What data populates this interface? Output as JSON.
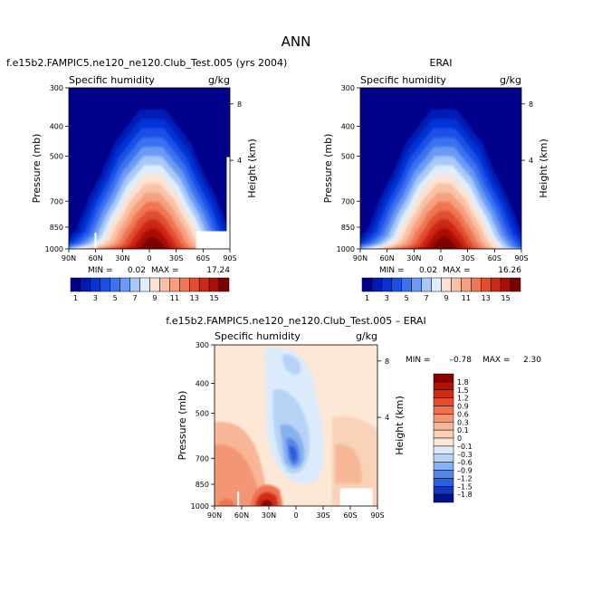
{
  "title": "ANN",
  "panels": [
    {
      "title": "f.e15b2.FAMPIC5.ne120_ne120.Club_Test.005 (yrs 2004)",
      "variable": "Specific humidity",
      "units": "g/kg",
      "ylabel": "Pressure (mb)",
      "ylabel_right": "Height (km)",
      "yticks": [
        "300",
        "400",
        "500",
        "700",
        "850",
        "1000"
      ],
      "height_ticks": [
        "8",
        "4"
      ],
      "xticks": [
        "90N",
        "60N",
        "30N",
        "0",
        "30S",
        "60S",
        "90S"
      ],
      "min_label": "MIN =",
      "min_value": "0.02",
      "max_label": "MAX =",
      "max_value": "17.24"
    },
    {
      "title": "ERAI",
      "variable": "Specific humidity",
      "units": "g/kg",
      "ylabel": "Pressure (mb)",
      "ylabel_right": "Height (km)",
      "yticks": [
        "300",
        "400",
        "500",
        "700",
        "850",
        "1000"
      ],
      "height_ticks": [
        "8",
        "4"
      ],
      "xticks": [
        "90N",
        "60N",
        "30N",
        "0",
        "30S",
        "60S",
        "90S"
      ],
      "min_label": "MIN =",
      "min_value": "0.02",
      "max_label": "MAX =",
      "max_value": "16.26"
    },
    {
      "title": "f.e15b2.FAMPIC5.ne120_ne120.Club_Test.005 – ERAI",
      "variable": "Specific humidity",
      "units": "g/kg",
      "ylabel": "Pressure (mb)",
      "ylabel_right": "Height (km)",
      "yticks": [
        "300",
        "400",
        "500",
        "700",
        "850",
        "1000"
      ],
      "height_ticks": [
        "8",
        "4"
      ],
      "xticks": [
        "90N",
        "60N",
        "30N",
        "0",
        "30S",
        "60S",
        "90S"
      ],
      "min_label": "MIN =",
      "min_value": "–0.78",
      "max_label": "MAX =",
      "max_value": "2.30"
    }
  ],
  "colorbar_q": {
    "labels": [
      "1",
      "3",
      "5",
      "7",
      "9",
      "11",
      "13",
      "15"
    ],
    "colors": [
      "#00008a",
      "#001bb5",
      "#0533d4",
      "#1a50e6",
      "#3a72f0",
      "#6a9af5",
      "#a8c8f8",
      "#dfeefc",
      "#fde2d2",
      "#f9c1a6",
      "#f59f7e",
      "#ef7653",
      "#e24d30",
      "#cc2815",
      "#aa0f05",
      "#7c0000"
    ]
  },
  "colorbar_diff": {
    "labels": [
      "1.8",
      "1.5",
      "1.2",
      "0.9",
      "0.6",
      "0.3",
      "0.1",
      "0",
      "–0.1",
      "–0.3",
      "–0.6",
      "–0.9",
      "–1.2",
      "–1.5",
      "–1.8"
    ],
    "colors": [
      "#8a0000",
      "#b31005",
      "#d02b12",
      "#e44e2c",
      "#ee7250",
      "#f39675",
      "#f7b797",
      "#fad2b8",
      "#fde8d6",
      "#dcebfb",
      "#b6d3f6",
      "#86b1ee",
      "#5687e6",
      "#2c5fd9",
      "#1336bd",
      "#00118f"
    ]
  },
  "chart_data": [
    {
      "type": "heatmap",
      "title": "f.e15b2.FAMPIC5.ne120_ne120.Club_Test.005 (yrs 2004)",
      "variable": "Specific humidity",
      "units": "g/kg",
      "x": [
        "90N",
        "60N",
        "30N",
        "0",
        "30S",
        "60S",
        "90S"
      ],
      "y": [
        300,
        400,
        500,
        700,
        850,
        1000
      ],
      "xlabel": "",
      "ylabel": "Pressure (mb)",
      "levels": [
        1,
        2,
        3,
        4,
        5,
        6,
        7,
        8,
        9,
        10,
        11,
        12,
        13,
        14,
        15
      ],
      "min": 0.02,
      "max": 17.24
    },
    {
      "type": "heatmap",
      "title": "ERAI",
      "variable": "Specific humidity",
      "units": "g/kg",
      "x": [
        "90N",
        "60N",
        "30N",
        "0",
        "30S",
        "60S",
        "90S"
      ],
      "y": [
        300,
        400,
        500,
        700,
        850,
        1000
      ],
      "xlabel": "",
      "ylabel": "Pressure (mb)",
      "levels": [
        1,
        2,
        3,
        4,
        5,
        6,
        7,
        8,
        9,
        10,
        11,
        12,
        13,
        14,
        15
      ],
      "min": 0.02,
      "max": 16.26
    },
    {
      "type": "heatmap",
      "title": "f.e15b2.FAMPIC5.ne120_ne120.Club_Test.005 – ERAI",
      "variable": "Specific humidity",
      "units": "g/kg",
      "x": [
        "90N",
        "60N",
        "30N",
        "0",
        "30S",
        "60S",
        "90S"
      ],
      "y": [
        300,
        400,
        500,
        700,
        850,
        1000
      ],
      "xlabel": "",
      "ylabel": "Pressure (mb)",
      "levels": [
        -1.8,
        -1.5,
        -1.2,
        -0.9,
        -0.6,
        -0.3,
        -0.1,
        0,
        0.1,
        0.3,
        0.6,
        0.9,
        1.2,
        1.5,
        1.8
      ],
      "min": -0.78,
      "max": 2.3
    }
  ]
}
